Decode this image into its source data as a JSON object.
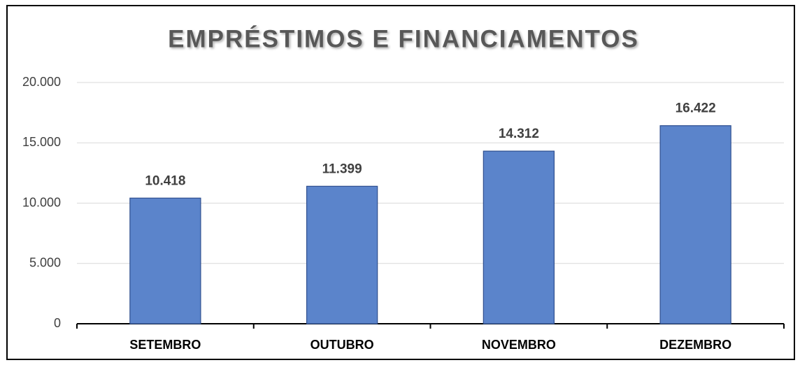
{
  "chart_data": {
    "type": "bar",
    "title": "EMPRÉSTIMOS E FINANCIAMENTOS",
    "categories": [
      "SETEMBRO",
      "OUTUBRO",
      "NOVEMBRO",
      "DEZEMBRO"
    ],
    "values": [
      10418,
      11399,
      14312,
      16422
    ],
    "value_labels": [
      "10.418",
      "11.399",
      "14.312",
      "16.422"
    ],
    "color": "#5b84cb",
    "ylim": [
      0,
      20000
    ],
    "yticks": [
      0,
      {
        "value": 5000,
        "label": "5.000"
      },
      {
        "value": 10000,
        "label": "10.000"
      },
      {
        "value": 15000,
        "label": "15.000"
      },
      {
        "value": 20000,
        "label": "20.000"
      }
    ],
    "grid": true
  }
}
